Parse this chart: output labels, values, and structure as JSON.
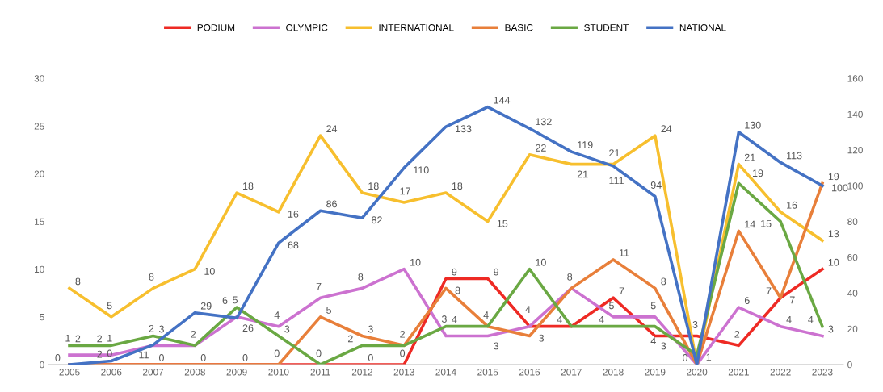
{
  "chart_data": {
    "type": "line",
    "categories": [
      "2005",
      "2006",
      "2007",
      "2008",
      "2009",
      "2010",
      "2011",
      "2012",
      "2013",
      "2014",
      "2015",
      "2016",
      "2017",
      "2018",
      "2019",
      "2020",
      "2021",
      "2022",
      "2023"
    ],
    "series": [
      {
        "name": "PODIUM",
        "color": "#ee2a24",
        "values": [
          0,
          0,
          0,
          0,
          0,
          0,
          0,
          0,
          0,
          9,
          9,
          4,
          4,
          7,
          3,
          3,
          2,
          7,
          10
        ],
        "value_labels": [
          "0",
          "0",
          "0",
          "0",
          "0",
          "0",
          "0",
          "0",
          "0",
          "9",
          "9",
          "4",
          "4",
          "7",
          "3",
          "3",
          "2",
          "7",
          "10"
        ]
      },
      {
        "name": "OLYMPIC",
        "color": "#cc72d0",
        "values": [
          1,
          1,
          2,
          2,
          5,
          4,
          7,
          8,
          10,
          3,
          3,
          4,
          8,
          5,
          5,
          0,
          6,
          4,
          3
        ],
        "value_labels": [
          "1",
          "1",
          "2",
          "2",
          "5",
          "4",
          "7",
          "8",
          "10",
          "3",
          "3",
          null,
          "8",
          "5",
          "5",
          null,
          "6",
          "4",
          "3"
        ]
      },
      {
        "name": "INTERNATIONAL",
        "color": "#f7bf2e",
        "values": [
          8,
          5,
          8,
          10,
          18,
          16,
          24,
          18,
          17,
          18,
          15,
          22,
          21,
          21,
          24,
          0,
          21,
          16,
          13
        ],
        "value_labels": [
          "8",
          "5",
          "8",
          "10",
          "18",
          "16",
          "24",
          "18",
          "17",
          "18",
          "15",
          "22",
          "21",
          "21",
          "24",
          null,
          "21",
          "16",
          "13"
        ]
      },
      {
        "name": "BASIC",
        "color": "#e87f3a",
        "values": [
          0,
          0,
          0,
          0,
          0,
          0,
          5,
          3,
          2,
          8,
          4,
          3,
          8,
          11,
          8,
          0,
          14,
          7,
          19
        ],
        "value_labels": [
          null,
          null,
          null,
          null,
          null,
          null,
          "5",
          "3",
          null,
          "8",
          null,
          "3",
          null,
          "11",
          "8",
          null,
          "14",
          "7",
          "19"
        ]
      },
      {
        "name": "STUDENT",
        "color": "#6aa843",
        "values": [
          2,
          2,
          3,
          2,
          6,
          3,
          0,
          2,
          2,
          4,
          4,
          10,
          4,
          4,
          4,
          1,
          19,
          15,
          4
        ],
        "value_labels": [
          "2",
          "2",
          "3",
          null,
          "6",
          "3",
          null,
          "2",
          "2",
          "4",
          "4",
          "10",
          null,
          "4",
          "4",
          "1",
          "19",
          "15",
          "4"
        ]
      },
      {
        "name": "NATIONAL",
        "color": "#4472c4",
        "axis": "y2",
        "values": [
          0,
          2,
          11,
          29,
          26,
          68,
          86,
          82,
          110,
          133,
          144,
          132,
          119,
          111,
          94,
          0,
          130,
          113,
          100
        ],
        "value_labels": [
          null,
          "2",
          "11",
          "29",
          "26",
          "68",
          "86",
          "82",
          "110",
          "133",
          "144",
          "132",
          "119",
          "111",
          "94",
          "0",
          "130",
          "113",
          "100"
        ]
      }
    ],
    "ylim": [
      0,
      30
    ],
    "yticks": [
      0,
      5,
      10,
      15,
      20,
      25,
      30
    ],
    "y2lim": [
      0,
      160
    ],
    "y2ticks": [
      0,
      20,
      40,
      60,
      80,
      100,
      120,
      140,
      160
    ],
    "legend": "top",
    "grid": false,
    "marker": "none",
    "line_style": "solid"
  }
}
